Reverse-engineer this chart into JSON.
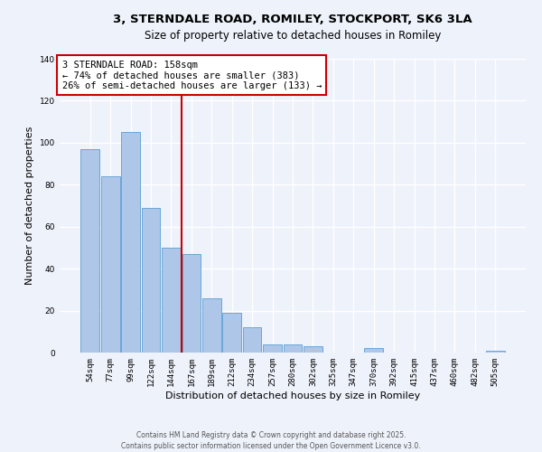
{
  "title": "3, STERNDALE ROAD, ROMILEY, STOCKPORT, SK6 3LA",
  "subtitle": "Size of property relative to detached houses in Romiley",
  "xlabel": "Distribution of detached houses by size in Romiley",
  "ylabel": "Number of detached properties",
  "bar_labels": [
    "54sqm",
    "77sqm",
    "99sqm",
    "122sqm",
    "144sqm",
    "167sqm",
    "189sqm",
    "212sqm",
    "234sqm",
    "257sqm",
    "280sqm",
    "302sqm",
    "325sqm",
    "347sqm",
    "370sqm",
    "392sqm",
    "415sqm",
    "437sqm",
    "460sqm",
    "482sqm",
    "505sqm"
  ],
  "bar_values": [
    97,
    84,
    105,
    69,
    50,
    47,
    26,
    19,
    12,
    4,
    4,
    3,
    0,
    0,
    2,
    0,
    0,
    0,
    0,
    0,
    1
  ],
  "bar_color": "#aec6e8",
  "bar_edge_color": "#5a9fd4",
  "vline_index": 5,
  "vline_color": "#cc0000",
  "annotation_text": "3 STERNDALE ROAD: 158sqm\n← 74% of detached houses are smaller (383)\n26% of semi-detached houses are larger (133) →",
  "annotation_box_color": "#ffffff",
  "annotation_box_edge": "#cc0000",
  "ylim": [
    0,
    140
  ],
  "yticks": [
    0,
    20,
    40,
    60,
    80,
    100,
    120,
    140
  ],
  "background_color": "#eef2fb",
  "grid_color": "#ffffff",
  "footer_line1": "Contains HM Land Registry data © Crown copyright and database right 2025.",
  "footer_line2": "Contains public sector information licensed under the Open Government Licence v3.0.",
  "title_fontsize": 9.5,
  "subtitle_fontsize": 8.5,
  "axis_label_fontsize": 8,
  "tick_fontsize": 6.5,
  "annotation_fontsize": 7.5,
  "footer_fontsize": 5.5
}
